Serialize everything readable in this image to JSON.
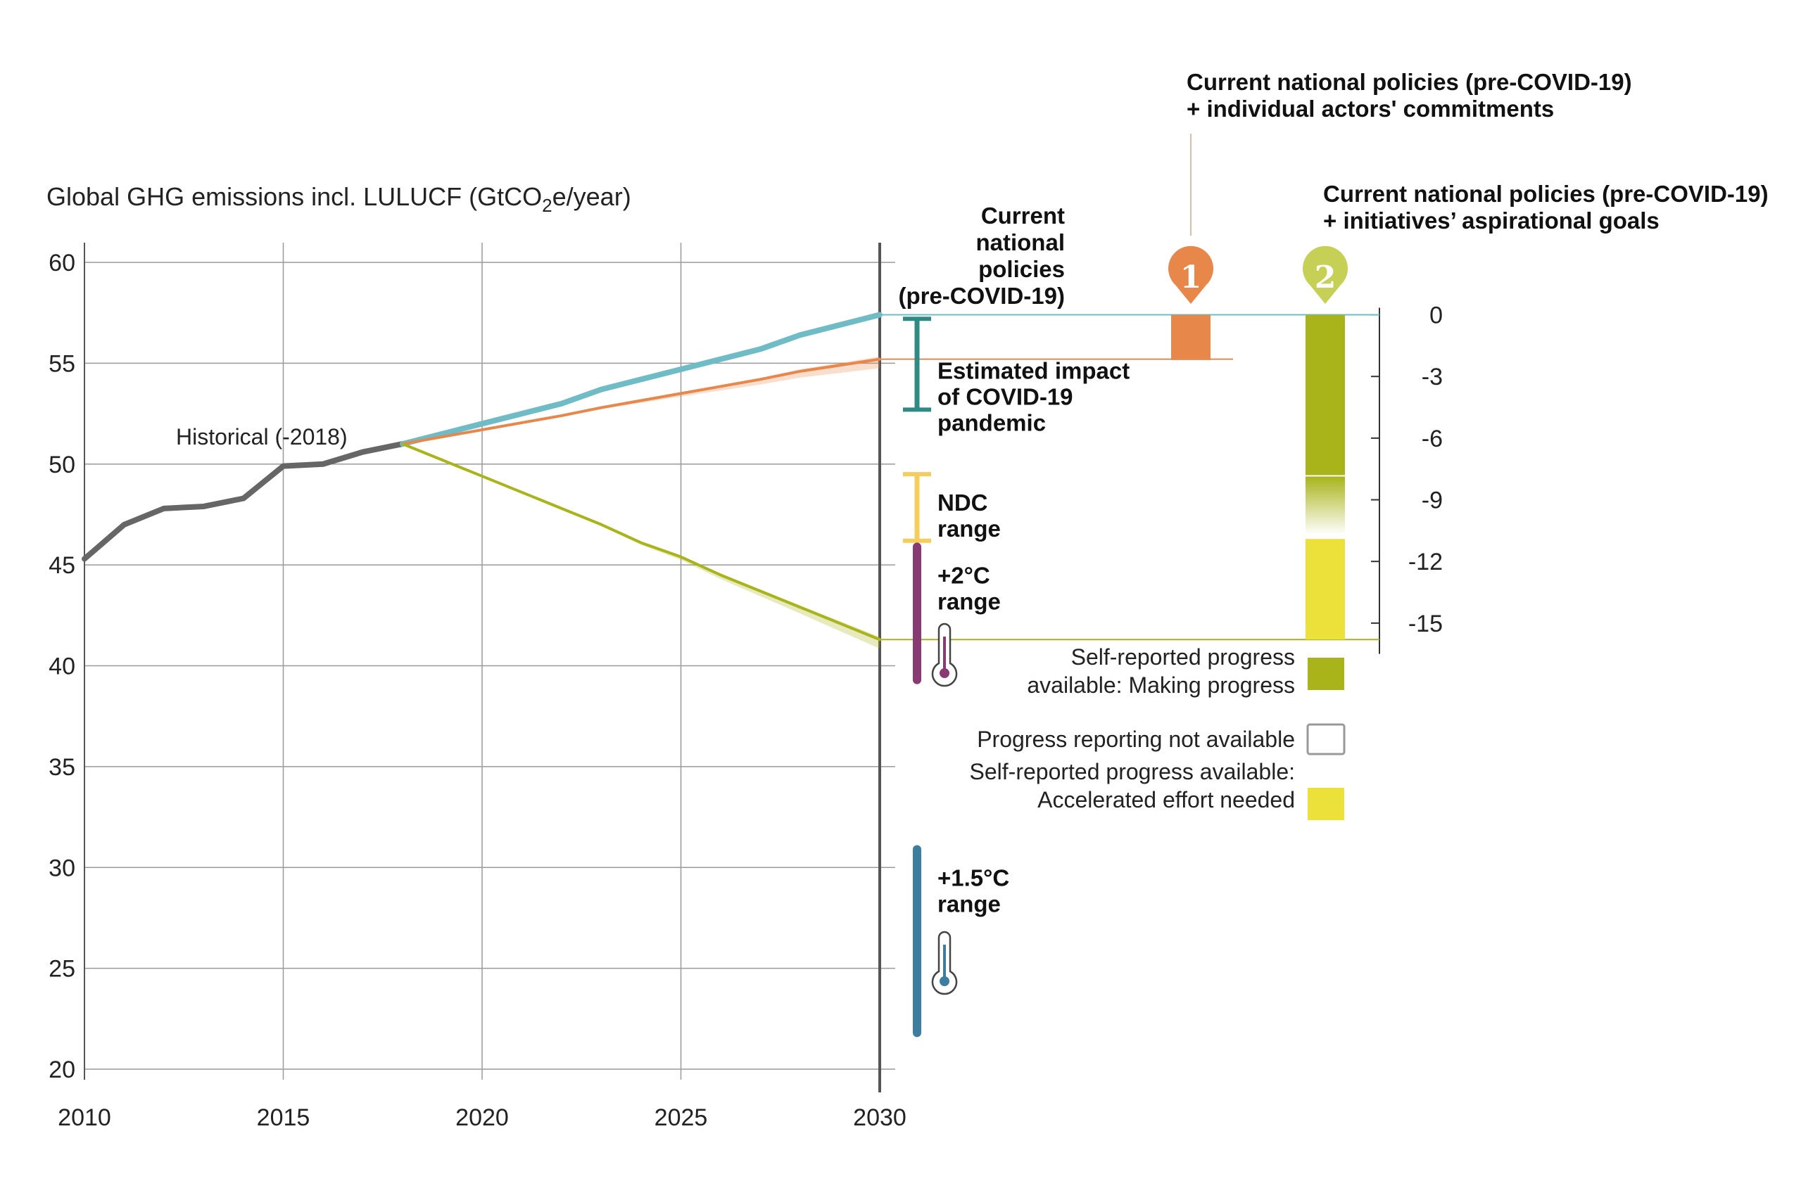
{
  "chart_data": {
    "type": "line",
    "title_parts": [
      "Global GHG emissions incl. LULUCF (GtCO",
      "2",
      "e/year)"
    ],
    "xlim": [
      2010,
      2030
    ],
    "ylim": [
      20,
      60
    ],
    "x_ticks": [
      "2010",
      "2015",
      "2020",
      "2025",
      "2030"
    ],
    "y_ticks": [
      "20",
      "25",
      "30",
      "35",
      "40",
      "45",
      "50",
      "55",
      "60"
    ],
    "series": [
      {
        "key": "historical",
        "name": "Historical (-2018)",
        "color": "#666666",
        "x": [
          2010,
          2011,
          2012,
          2013,
          2014,
          2015,
          2016,
          2017,
          2018
        ],
        "y": [
          45.3,
          47.0,
          47.8,
          47.9,
          48.3,
          49.9,
          50.0,
          50.6,
          51.0
        ]
      },
      {
        "key": "current_policies",
        "color": "#6fbcc7",
        "x": [
          2018,
          2020,
          2022,
          2023,
          2025,
          2027,
          2028,
          2030
        ],
        "y": [
          51.0,
          52.0,
          53.0,
          53.7,
          54.7,
          55.7,
          56.4,
          57.4
        ]
      },
      {
        "key": "actors_commitments",
        "color": "#e8874a",
        "x": [
          2018,
          2020,
          2022,
          2023,
          2025,
          2027,
          2028,
          2030
        ],
        "y": [
          51.0,
          51.7,
          52.4,
          52.8,
          53.5,
          54.2,
          54.6,
          55.2
        ]
      },
      {
        "key": "aspirational_goals",
        "color": "#a9b41a",
        "x": [
          2018,
          2020,
          2022,
          2023,
          2024,
          2025,
          2026,
          2027,
          2028,
          2030
        ],
        "y": [
          51.0,
          49.4,
          47.8,
          47.0,
          46.1,
          45.4,
          44.5,
          43.7,
          42.9,
          41.3
        ]
      }
    ],
    "ranges": [
      {
        "key": "covid",
        "label": [
          "Estimated impact",
          "of COVID-19",
          "pandemic"
        ],
        "low": 52.7,
        "high": 57.2,
        "color": "#2f8a84"
      },
      {
        "key": "ndc",
        "label": [
          "NDC",
          "range"
        ],
        "low": 46.2,
        "high": 49.5,
        "color": "#f5cd5c"
      },
      {
        "key": "two_c",
        "label": [
          "+2°C",
          "range"
        ],
        "low": 39.3,
        "high": 45.9,
        "color": "#8a3a73"
      },
      {
        "key": "one_five_c",
        "label": [
          "+1.5°C",
          "range"
        ],
        "low": 21.8,
        "high": 30.9,
        "color": "#3d7ea0"
      }
    ],
    "current_policies_label": [
      "Current",
      "national",
      "policies",
      "(pre-COVID-19)"
    ],
    "scenario1": {
      "number": "1",
      "title": [
        "Current national policies (pre-COVID-19)",
        "+ individual actors' commitments"
      ],
      "color": "#e8874a",
      "value": -2.2
    },
    "scenario2": {
      "number": "2",
      "title": [
        "Current national policies (pre-COVID-19)",
        "+ initiatives’ aspirational goals"
      ],
      "color": "#c5d055",
      "making_progress": -7.8,
      "not_available_to": -10.7,
      "accelerated_to": -15.8
    },
    "right_axis": {
      "ticks": [
        "0",
        "-3",
        "-6",
        "-9",
        "-12",
        "-15"
      ],
      "values": [
        0,
        -3,
        -6,
        -9,
        -12,
        -15
      ],
      "range": [
        0,
        -16.5
      ]
    },
    "legend": [
      {
        "key": "making",
        "lines": [
          "Self-reported progress",
          "available: Making progress"
        ],
        "color": "#a9b41a"
      },
      {
        "key": "na",
        "lines": [
          "Progress reporting not available"
        ],
        "color": "#ffffff"
      },
      {
        "key": "accel",
        "lines": [
          "Self-reported progress available:",
          "Accelerated effort needed"
        ],
        "color": "#ebe13a"
      }
    ]
  }
}
